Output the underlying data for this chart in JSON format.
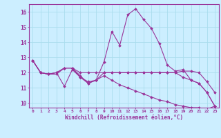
{
  "xlabel": "Windchill (Refroidissement éolien,°C)",
  "x_values": [
    0,
    1,
    2,
    3,
    4,
    5,
    6,
    7,
    8,
    9,
    10,
    11,
    12,
    13,
    14,
    15,
    16,
    17,
    18,
    19,
    20,
    21,
    22,
    23
  ],
  "lines": [
    [
      12.8,
      12.0,
      11.9,
      11.9,
      12.3,
      12.3,
      11.8,
      11.3,
      11.5,
      12.7,
      14.7,
      13.8,
      15.8,
      16.2,
      15.5,
      14.9,
      13.9,
      12.5,
      12.1,
      12.2,
      11.5,
      11.3,
      10.7,
      9.8
    ],
    [
      12.8,
      12.0,
      11.9,
      12.0,
      11.1,
      12.2,
      11.7,
      11.4,
      11.5,
      12.0,
      12.0,
      12.0,
      12.0,
      12.0,
      12.0,
      12.0,
      12.0,
      12.0,
      12.0,
      11.7,
      11.5,
      11.3,
      10.7,
      9.8
    ],
    [
      12.8,
      12.0,
      11.9,
      12.0,
      12.3,
      12.3,
      12.0,
      12.0,
      12.0,
      12.0,
      12.0,
      12.0,
      12.0,
      12.0,
      12.0,
      12.0,
      12.0,
      12.0,
      12.0,
      12.1,
      12.1,
      12.0,
      11.4,
      10.7
    ],
    [
      12.8,
      12.0,
      11.9,
      12.0,
      12.3,
      12.3,
      11.7,
      11.3,
      11.5,
      11.8,
      11.5,
      11.2,
      11.0,
      10.8,
      10.6,
      10.4,
      10.2,
      10.1,
      9.9,
      9.8,
      9.7,
      9.7,
      9.6,
      9.8
    ]
  ],
  "line_color": "#993399",
  "marker": "D",
  "markersize": 2.0,
  "linewidth": 0.8,
  "ylim": [
    9.7,
    16.5
  ],
  "yticks": [
    10,
    11,
    12,
    13,
    14,
    15,
    16
  ],
  "xlim": [
    -0.5,
    23.5
  ],
  "bg_color": "#cceeff",
  "grid_color": "#aaddee",
  "axis_color": "#993399",
  "tick_color": "#993399",
  "label_color": "#993399"
}
